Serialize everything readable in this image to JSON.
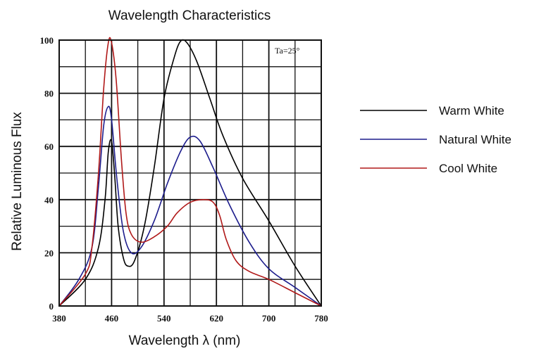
{
  "chart_data": {
    "type": "line",
    "title": "Wavelength Characteristics",
    "xlabel": "Wavelength  λ  (nm)",
    "ylabel": "Relative Luminous Flux",
    "annotation": "Ta=25°",
    "xlim": [
      380,
      780
    ],
    "ylim": [
      0,
      100
    ],
    "x_ticks": [
      380,
      460,
      540,
      620,
      700,
      780
    ],
    "y_ticks": [
      0,
      20,
      40,
      60,
      80,
      100
    ],
    "grid": true,
    "legend_position": "right",
    "series": [
      {
        "name": "Warm White",
        "color": "#000000",
        "points": [
          [
            380,
            0
          ],
          [
            420,
            10
          ],
          [
            440,
            22
          ],
          [
            450,
            40
          ],
          [
            455,
            58
          ],
          [
            460,
            62
          ],
          [
            465,
            48
          ],
          [
            470,
            30
          ],
          [
            478,
            18
          ],
          [
            485,
            15
          ],
          [
            495,
            17
          ],
          [
            510,
            30
          ],
          [
            525,
            52
          ],
          [
            540,
            78
          ],
          [
            555,
            93
          ],
          [
            565,
            99.5
          ],
          [
            575,
            99
          ],
          [
            590,
            92
          ],
          [
            610,
            78
          ],
          [
            630,
            64
          ],
          [
            660,
            48
          ],
          [
            700,
            32
          ],
          [
            740,
            15
          ],
          [
            780,
            0
          ]
        ]
      },
      {
        "name": "Natural White",
        "color": "#1c1c8c",
        "points": [
          [
            380,
            0
          ],
          [
            410,
            10
          ],
          [
            430,
            22
          ],
          [
            440,
            45
          ],
          [
            448,
            68
          ],
          [
            455,
            75
          ],
          [
            460,
            70
          ],
          [
            468,
            48
          ],
          [
            478,
            28
          ],
          [
            490,
            20
          ],
          [
            505,
            22
          ],
          [
            525,
            32
          ],
          [
            545,
            46
          ],
          [
            565,
            58
          ],
          [
            580,
            63.5
          ],
          [
            595,
            62
          ],
          [
            615,
            52
          ],
          [
            640,
            38
          ],
          [
            670,
            24
          ],
          [
            700,
            14
          ],
          [
            740,
            7
          ],
          [
            780,
            0
          ]
        ]
      },
      {
        "name": "Cool White",
        "color": "#b01818",
        "points": [
          [
            380,
            0
          ],
          [
            420,
            12
          ],
          [
            430,
            22
          ],
          [
            440,
            50
          ],
          [
            448,
            82
          ],
          [
            455,
            99
          ],
          [
            460,
            99
          ],
          [
            467,
            85
          ],
          [
            475,
            55
          ],
          [
            482,
            35
          ],
          [
            490,
            27
          ],
          [
            505,
            24
          ],
          [
            525,
            26
          ],
          [
            545,
            30
          ],
          [
            560,
            35
          ],
          [
            580,
            39
          ],
          [
            600,
            40
          ],
          [
            615,
            39
          ],
          [
            625,
            34
          ],
          [
            635,
            25
          ],
          [
            650,
            17
          ],
          [
            670,
            13
          ],
          [
            700,
            10
          ],
          [
            740,
            5
          ],
          [
            780,
            0
          ]
        ]
      }
    ]
  }
}
